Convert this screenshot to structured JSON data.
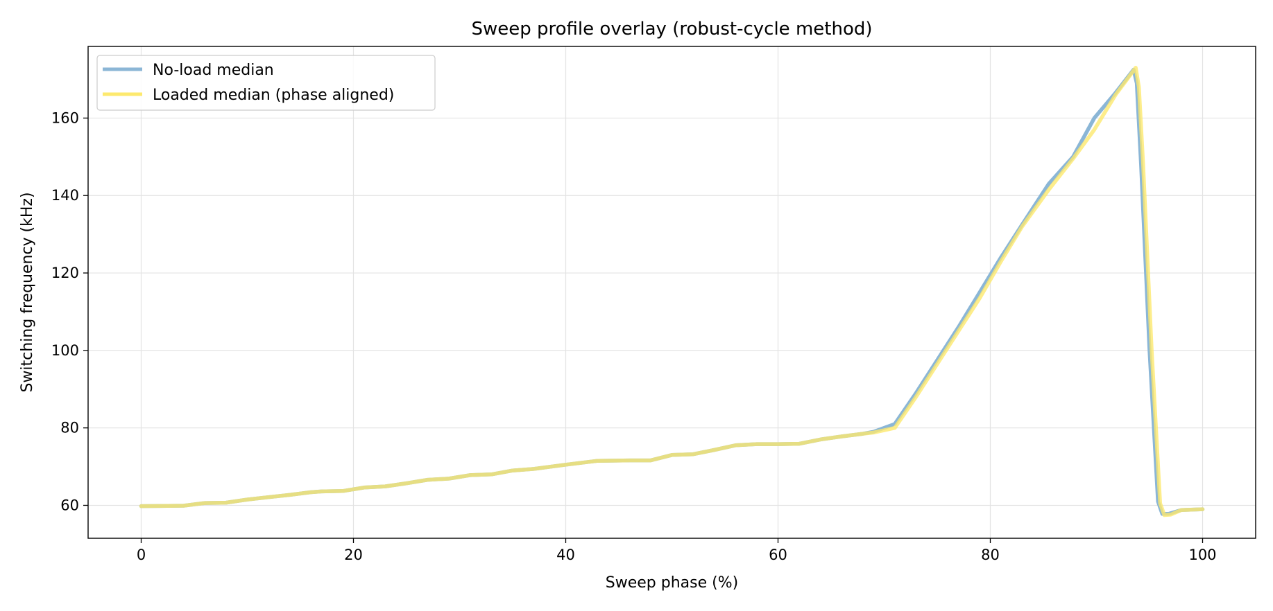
{
  "chart_data": {
    "type": "line",
    "title": "Sweep profile overlay (robust-cycle method)",
    "xlabel": "Sweep phase (%)",
    "ylabel": "Switching frequency (kHz)",
    "xlim": [
      -5,
      105
    ],
    "ylim": [
      51.5,
      178.5
    ],
    "xticks": [
      0,
      20,
      40,
      60,
      80,
      100
    ],
    "yticks": [
      60,
      80,
      100,
      120,
      140,
      160
    ],
    "grid": true,
    "legend_position": "top-left",
    "series": [
      {
        "name": "No-load median",
        "color": "#8bb6d6",
        "x": [
          0,
          4,
          6,
          8,
          10,
          12,
          14,
          16,
          17,
          19,
          21,
          23,
          25,
          27,
          29,
          31,
          33,
          35,
          37,
          40,
          43,
          46,
          48,
          50,
          52,
          54,
          56,
          58,
          60,
          62,
          64,
          66,
          68,
          69,
          71,
          73,
          75,
          77,
          79,
          81,
          83,
          85.5,
          87.8,
          89.8,
          91.8,
          93.5,
          93.8,
          94.2,
          95,
          95.8,
          96.2,
          96.8,
          98,
          100
        ],
        "y": [
          59.8,
          59.9,
          60.6,
          60.7,
          61.5,
          62.1,
          62.7,
          63.4,
          63.6,
          63.7,
          64.6,
          64.9,
          65.7,
          66.6,
          66.9,
          67.8,
          68.0,
          69.0,
          69.4,
          70.5,
          71.5,
          71.6,
          71.6,
          73.0,
          73.2,
          74.3,
          75.5,
          75.8,
          75.8,
          75.9,
          77.0,
          77.8,
          78.5,
          79.0,
          81.0,
          89.0,
          97.5,
          106.0,
          115.0,
          124.0,
          132.5,
          143.0,
          150.0,
          160.0,
          166.5,
          172.5,
          169.0,
          148.0,
          100.0,
          61.0,
          57.8,
          57.8,
          58.8,
          59.0
        ]
      },
      {
        "name": "Loaded median (phase aligned)",
        "color": "#fde96e",
        "x": [
          0,
          4,
          6,
          8,
          10,
          12,
          14,
          16,
          17,
          19,
          21,
          23,
          25,
          27,
          29,
          31,
          33,
          35,
          37,
          40,
          43,
          46,
          48,
          50,
          52,
          54,
          56,
          58,
          60,
          62,
          64,
          66,
          68,
          69,
          71,
          73,
          75,
          77,
          79,
          81,
          83,
          85.5,
          87.8,
          89.8,
          91.8,
          93.7,
          94.0,
          94.4,
          95.2,
          96.0,
          96.4,
          97.0,
          98,
          100
        ],
        "y": [
          59.8,
          59.9,
          60.6,
          60.7,
          61.5,
          62.1,
          62.7,
          63.4,
          63.6,
          63.7,
          64.6,
          64.9,
          65.7,
          66.6,
          66.9,
          67.8,
          68.0,
          69.0,
          69.4,
          70.5,
          71.5,
          71.6,
          71.6,
          73.0,
          73.2,
          74.3,
          75.5,
          75.8,
          75.8,
          75.9,
          77.0,
          77.8,
          78.5,
          78.8,
          80.0,
          88.0,
          96.5,
          105.0,
          113.5,
          123.0,
          132.0,
          141.5,
          149.5,
          157.0,
          166.0,
          173.0,
          168.0,
          148.0,
          100.0,
          60.5,
          57.5,
          57.6,
          58.8,
          59.0
        ]
      }
    ]
  }
}
